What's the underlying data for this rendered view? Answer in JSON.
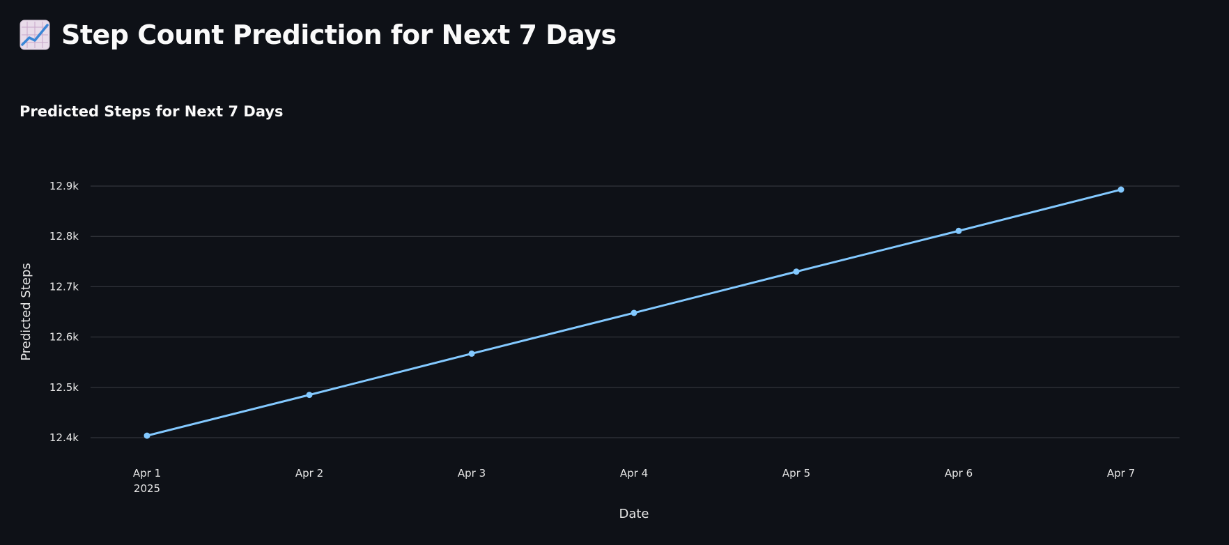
{
  "page": {
    "title": "Step Count Prediction for Next 7 Days",
    "title_icon": "chart-increasing-icon"
  },
  "colors": {
    "background": "#0e1117",
    "text": "#fafafa",
    "gridline": "#3a3d45",
    "series": "#83c9ff"
  },
  "chart_data": {
    "type": "line",
    "title": "Predicted Steps for Next 7 Days",
    "xlabel": "Date",
    "ylabel": "Predicted Steps",
    "categories": [
      "Apr 1",
      "Apr 2",
      "Apr 3",
      "Apr 4",
      "Apr 5",
      "Apr 6",
      "Apr 7"
    ],
    "x_sublabels": [
      "2025",
      "",
      "",
      "",
      "",
      "",
      ""
    ],
    "values": [
      12404,
      12485,
      12567,
      12648,
      12730,
      12811,
      12893
    ],
    "yticks": [
      {
        "value": 12400,
        "label": "12.4k"
      },
      {
        "value": 12500,
        "label": "12.5k"
      },
      {
        "value": 12600,
        "label": "12.6k"
      },
      {
        "value": 12700,
        "label": "12.7k"
      },
      {
        "value": 12800,
        "label": "12.8k"
      },
      {
        "value": 12900,
        "label": "12.9k"
      }
    ],
    "ylim": [
      12400,
      12900
    ],
    "grid": true,
    "markers": true
  }
}
